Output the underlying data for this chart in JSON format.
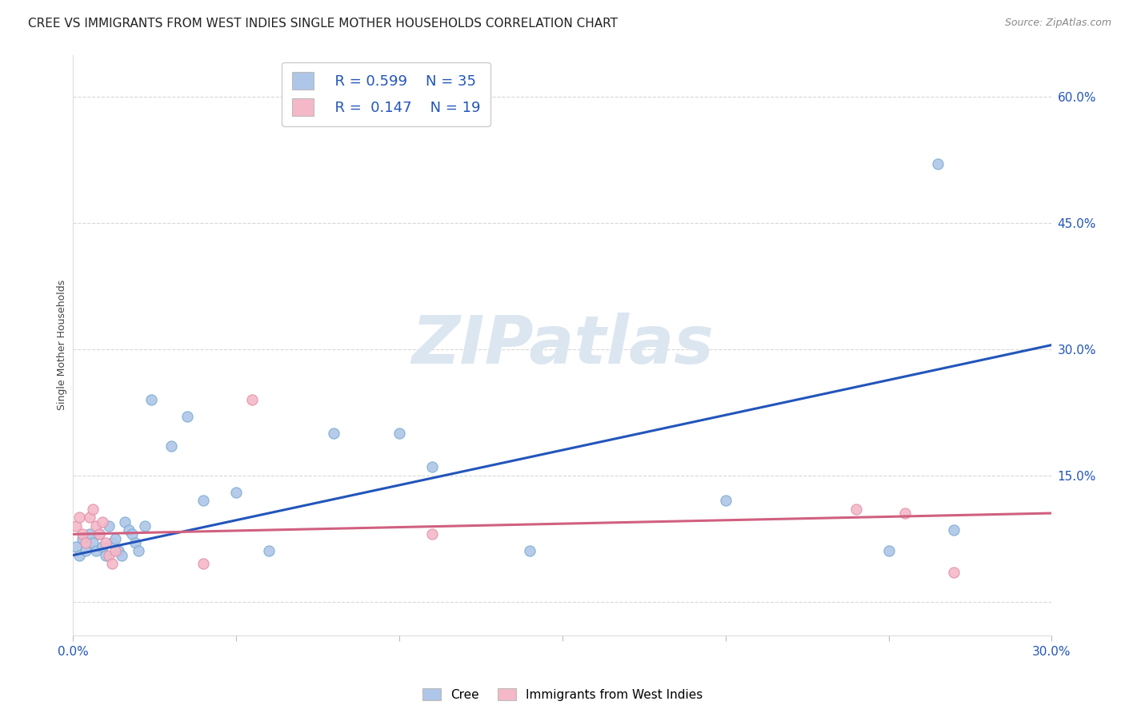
{
  "title": "CREE VS IMMIGRANTS FROM WEST INDIES SINGLE MOTHER HOUSEHOLDS CORRELATION CHART",
  "source": "Source: ZipAtlas.com",
  "ylabel": "Single Mother Households",
  "xlim": [
    0.0,
    0.3
  ],
  "ylim": [
    -0.04,
    0.65
  ],
  "yticks": [
    0.0,
    0.15,
    0.3,
    0.45,
    0.6
  ],
  "ytick_labels": [
    "",
    "15.0%",
    "30.0%",
    "45.0%",
    "60.0%"
  ],
  "xticks": [
    0.0,
    0.05,
    0.1,
    0.15,
    0.2,
    0.25,
    0.3
  ],
  "xtick_labels": [
    "0.0%",
    "",
    "",
    "",
    "",
    "",
    "30.0%"
  ],
  "watermark": "ZIPatlas",
  "legend_R1": "R = 0.599",
  "legend_N1": "N = 35",
  "legend_R2": "R = 0.147",
  "legend_N2": "N = 19",
  "legend_label1": "Cree",
  "legend_label2": "Immigrants from West Indies",
  "cree_color": "#aec6e8",
  "cree_edge_color": "#7aaad0",
  "cree_line_color": "#2255bb",
  "wi_color": "#f5b8c8",
  "wi_edge_color": "#e090a8",
  "wi_line_color": "#d06080",
  "cree_x": [
    0.001,
    0.002,
    0.003,
    0.004,
    0.005,
    0.006,
    0.007,
    0.008,
    0.009,
    0.01,
    0.011,
    0.012,
    0.013,
    0.014,
    0.015,
    0.016,
    0.017,
    0.018,
    0.019,
    0.02,
    0.022,
    0.024,
    0.03,
    0.035,
    0.04,
    0.05,
    0.06,
    0.08,
    0.1,
    0.11,
    0.14,
    0.25,
    0.265,
    0.27,
    0.2
  ],
  "cree_y": [
    0.065,
    0.055,
    0.075,
    0.06,
    0.08,
    0.07,
    0.06,
    0.08,
    0.065,
    0.055,
    0.09,
    0.07,
    0.075,
    0.06,
    0.055,
    0.095,
    0.085,
    0.08,
    0.07,
    0.06,
    0.09,
    0.24,
    0.185,
    0.22,
    0.12,
    0.13,
    0.06,
    0.2,
    0.2,
    0.16,
    0.06,
    0.06,
    0.52,
    0.085,
    0.12
  ],
  "wi_x": [
    0.001,
    0.002,
    0.003,
    0.004,
    0.005,
    0.006,
    0.007,
    0.008,
    0.009,
    0.01,
    0.011,
    0.012,
    0.013,
    0.04,
    0.055,
    0.11,
    0.24,
    0.255,
    0.27
  ],
  "wi_y": [
    0.09,
    0.1,
    0.08,
    0.07,
    0.1,
    0.11,
    0.09,
    0.08,
    0.095,
    0.07,
    0.055,
    0.045,
    0.06,
    0.045,
    0.24,
    0.08,
    0.11,
    0.105,
    0.035
  ],
  "cree_trendline_x": [
    0.0,
    0.3
  ],
  "cree_trendline_y": [
    0.055,
    0.305
  ],
  "wi_trendline_x": [
    0.0,
    0.3
  ],
  "wi_trendline_y": [
    0.08,
    0.105
  ],
  "background_color": "#ffffff",
  "grid_color": "#d8d8d8",
  "title_fontsize": 11,
  "axis_label_fontsize": 9,
  "tick_fontsize": 11,
  "watermark_color": "#dce6f0",
  "watermark_fontsize": 60
}
